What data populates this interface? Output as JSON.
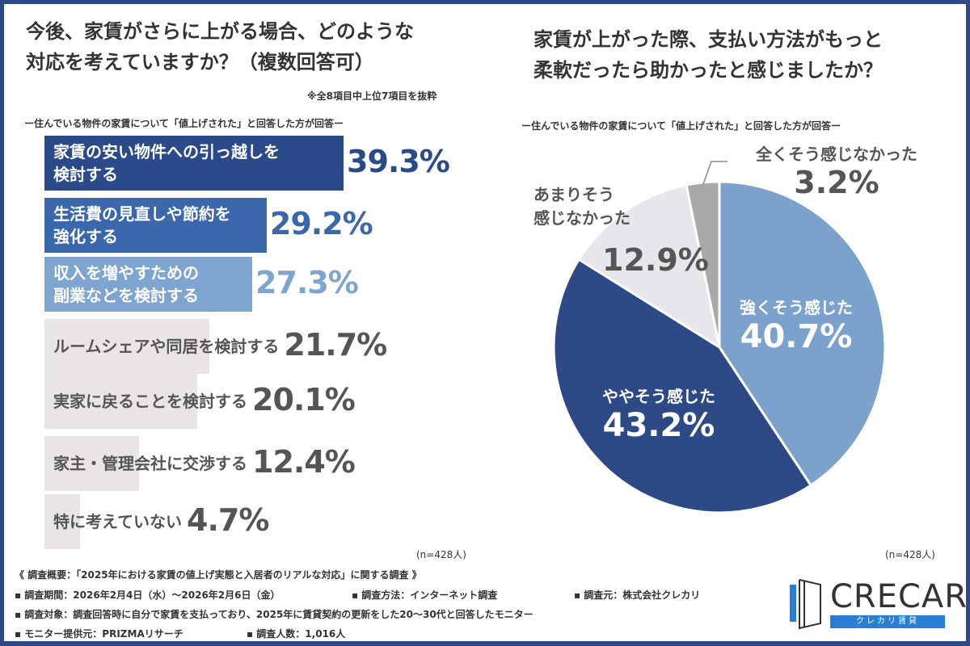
{
  "chart_data": [
    {
      "type": "bar",
      "orientation": "horizontal",
      "title": "今後、家賃がさらに上がる場合、どのような対応を考えていますか？（複数回答可）",
      "note": "※全8項目中上位7項目を抜粋",
      "subtitle": "ー住んでいる物件の家賃について「値上げされた」と回答した方が回答ー",
      "categories": [
        "家賃の安い物件への引っ越しを検討する",
        "生活費の見直しや節約を強化する",
        "収入を増やすための副業などを検討する",
        "ルームシェアや同居を検討する",
        "実家に戻ることを検討する",
        "家主・管理会社に交渉する",
        "特に考えていない"
      ],
      "label_lines": [
        [
          "家賃の安い物件への引っ越しを",
          "検討する"
        ],
        [
          "生活費の見直しや節約を",
          "強化する"
        ],
        [
          "収入を増やすための",
          "副業などを検討する"
        ],
        [
          "ルームシェアや同居を検討する"
        ],
        [
          "実家に戻ることを検討する"
        ],
        [
          "家主・管理会社に交渉する"
        ],
        [
          "特に考えていない"
        ]
      ],
      "values": [
        39.3,
        29.2,
        27.3,
        21.7,
        20.1,
        12.4,
        4.7
      ],
      "value_labels": [
        "39.3%",
        "29.2%",
        "27.3%",
        "21.7%",
        "20.1%",
        "12.4%",
        "4.7%"
      ],
      "bar_colors": [
        "#2b4a8a",
        "#3b68ad",
        "#7ea5d0",
        "#e9e5e5",
        "#e9e5e5",
        "#e9e5e5",
        "#e9e5e5"
      ],
      "value_colors": [
        "#2b4a8a",
        "#3b68ad",
        "#7ea5d0",
        "#555555",
        "#555555",
        "#555555",
        "#555555"
      ],
      "n": "(n=428人)"
    },
    {
      "type": "pie",
      "title": "家賃が上がった際、支払い方法がもっと柔軟だったら助かったと感じましたか？",
      "subtitle": "ー住んでいる物件の家賃について「値上げされた」と回答した方が回答ー",
      "slices": [
        {
          "label": "強くそう感じた",
          "value": 40.7,
          "value_label": "40.7%",
          "color": "#7aa2cc"
        },
        {
          "label": "ややそう感じた",
          "value": 43.2,
          "value_label": "43.2%",
          "color": "#2d4a86"
        },
        {
          "label": "あまりそう感じなかった",
          "value": 12.9,
          "value_label": "12.9%",
          "color": "#e6e6eb"
        },
        {
          "label": "全くそう感じなかった",
          "value": 3.2,
          "value_label": "3.2%",
          "color": "#a9a9a9"
        }
      ],
      "n": "(n=428人)"
    }
  ],
  "left": {
    "title_line1": "今後、家賃がさらに上がる場合、どのような",
    "title_line2": "対応を考えていますか？（複数回答可）"
  },
  "right": {
    "title_line1": "家賃が上がった際、支払い方法がもっと",
    "title_line2": "柔軟だったら助かったと感じましたか？",
    "lab3a": "あまりそう",
    "lab3b": "感じなかった"
  },
  "footer": {
    "line1": "《 調査概要：「2025年における家賃の値上げ実態と入居者のリアルな対応」に関する調査 》",
    "period": "▪ 調査期間：2026年2月4日（水）～2026年2月6日（金）",
    "method": "▪ 調査方法：インターネット調査",
    "source": "▪ 調査元：株式会社クレカリ",
    "target": "▪ 調査対象：調査回答時に自分で家賃を支払っており、2025年に賃貸契約の更新をした20～30代と回答したモニター",
    "provider": "▪ モニター提供元：PRIZMAリサーチ",
    "count": "▪ 調査人数：1,016人"
  },
  "logo": {
    "name": "CRECARI",
    "tagline": "クレカリ賃貸"
  }
}
